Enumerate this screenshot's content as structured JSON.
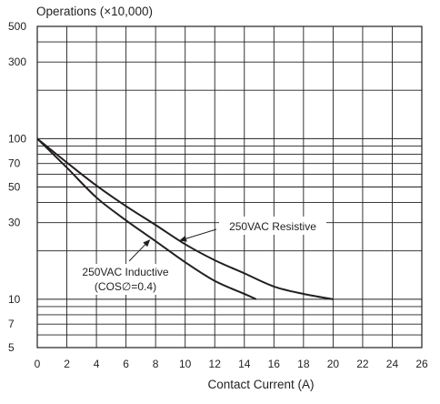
{
  "chart_data": {
    "type": "line",
    "ylabel": "Operations (×10,000)",
    "xlabel": "Contact Current (A)",
    "xlim": [
      0,
      26
    ],
    "ylim": [
      5,
      500
    ],
    "y_scale": "log",
    "grid": true,
    "x_ticks": [
      "0",
      "2",
      "4",
      "6",
      "8",
      "10",
      "12",
      "14",
      "16",
      "18",
      "20",
      "22",
      "24",
      "26"
    ],
    "y_ticks": [
      {
        "value": 5,
        "label": "5"
      },
      {
        "value": 7,
        "label": "7"
      },
      {
        "value": 10,
        "label": "10"
      },
      {
        "value": 30,
        "label": "30"
      },
      {
        "value": 50,
        "label": "50"
      },
      {
        "value": 70,
        "label": "70"
      },
      {
        "value": 100,
        "label": "100"
      },
      {
        "value": 300,
        "label": "300"
      },
      {
        "value": 500,
        "label": "500"
      }
    ],
    "y_grid": [
      5,
      6,
      7,
      8,
      9,
      10,
      20,
      30,
      40,
      50,
      60,
      70,
      80,
      90,
      100,
      200,
      300,
      400,
      500
    ],
    "series": [
      {
        "name": "250VAC Resistive",
        "x": [
          0,
          2,
          4,
          6,
          8,
          10,
          12,
          14,
          16,
          18,
          20
        ],
        "y": [
          100,
          71,
          51,
          38,
          29,
          22,
          17.5,
          14.5,
          12,
          10.8,
          10
        ]
      },
      {
        "name": "250VAC Inductive (COS∅=0.4)",
        "x": [
          0,
          2,
          4,
          6,
          8,
          10,
          12,
          14,
          14.8
        ],
        "y": [
          100,
          66,
          43,
          31,
          23,
          17,
          13,
          10.8,
          10
        ]
      }
    ],
    "annotations": [
      {
        "text": "250VAC Resistive",
        "series": 0,
        "target_x": 9.5
      },
      {
        "text": "250VAC Inductive",
        "text2": "(COS∅=0.4)",
        "series": 1,
        "target_x": 7.7
      }
    ]
  }
}
